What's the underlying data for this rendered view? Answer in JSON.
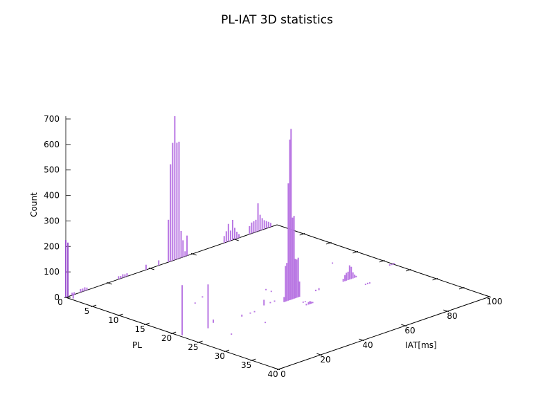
{
  "chart_data": {
    "type": "bar",
    "subtype": "3d-impulses",
    "title": "PL-IAT 3D statistics",
    "xlabel": "PL",
    "ylabel": "IAT[ms]",
    "zlabel": "Count",
    "x_range": [
      0,
      40
    ],
    "y_range": [
      0,
      100
    ],
    "z_range": [
      0,
      700
    ],
    "x_ticks": [
      0,
      5,
      10,
      15,
      20,
      25,
      30,
      35,
      40
    ],
    "y_ticks": [
      0,
      20,
      40,
      60,
      80,
      100
    ],
    "z_ticks": [
      0,
      100,
      200,
      300,
      400,
      500,
      600,
      700
    ],
    "grid": false,
    "legend": "none",
    "background": "#ffffff",
    "axis_color": "#000000",
    "bar_color": "#b977e3",
    "bar_color_dark": "#9c52cf",
    "points_format": [
      "PL",
      "IAT_ms",
      "Count"
    ],
    "points": [
      [
        0,
        0,
        225
      ],
      [
        0,
        1,
        212
      ],
      [
        1,
        1,
        18
      ],
      [
        0,
        3,
        10
      ],
      [
        0,
        4,
        9
      ],
      [
        0,
        7,
        13
      ],
      [
        0,
        8,
        12
      ],
      [
        0,
        9,
        14
      ],
      [
        0,
        10,
        10
      ],
      [
        0,
        25,
        12
      ],
      [
        0,
        26,
        10
      ],
      [
        0,
        27,
        14
      ],
      [
        0,
        28,
        11
      ],
      [
        0,
        29,
        12
      ],
      [
        0,
        38,
        20
      ],
      [
        0,
        44,
        20
      ],
      [
        0,
        48.6,
        166
      ],
      [
        0,
        49.6,
        381
      ],
      [
        0,
        50.6,
        462
      ],
      [
        0,
        51.6,
        564
      ],
      [
        0,
        52.6,
        457
      ],
      [
        0,
        53.6,
        458
      ],
      [
        0,
        54.6,
        105
      ],
      [
        0,
        55.5,
        66
      ],
      [
        0,
        56.5,
        20
      ],
      [
        0,
        57.4,
        79
      ],
      [
        0,
        75,
        27
      ],
      [
        0,
        76,
        43
      ],
      [
        0,
        77,
        69
      ],
      [
        0,
        78,
        40
      ],
      [
        0,
        79,
        79
      ],
      [
        0,
        80,
        45
      ],
      [
        0,
        81,
        27
      ],
      [
        0,
        82,
        15
      ],
      [
        0,
        87,
        32
      ],
      [
        0,
        88,
        43
      ],
      [
        0,
        89,
        45
      ],
      [
        0,
        90,
        48
      ],
      [
        0,
        91,
        110
      ],
      [
        0,
        92,
        62
      ],
      [
        0,
        93,
        46
      ],
      [
        0,
        94,
        35
      ],
      [
        0,
        95,
        29
      ],
      [
        0,
        96,
        23
      ],
      [
        0,
        97,
        16
      ],
      [
        22,
        48,
        20
      ],
      [
        22,
        48.7,
        140
      ],
      [
        22,
        49.3,
        150
      ],
      [
        22,
        50,
        460
      ],
      [
        22,
        50.7,
        630
      ],
      [
        22,
        51.3,
        670
      ],
      [
        22,
        52,
        320
      ],
      [
        22,
        52.7,
        325
      ],
      [
        22,
        53.3,
        155
      ],
      [
        22,
        54,
        150
      ],
      [
        22,
        54.7,
        155
      ],
      [
        22,
        55.3,
        60
      ],
      [
        22,
        76,
        12
      ],
      [
        22,
        76.8,
        24
      ],
      [
        22,
        77.5,
        31
      ],
      [
        22,
        78.3,
        33
      ],
      [
        22,
        79,
        56
      ],
      [
        22,
        79.8,
        48
      ],
      [
        22,
        80.6,
        24
      ],
      [
        22,
        81.4,
        13
      ],
      [
        22,
        82.1,
        6
      ],
      [
        25,
        51,
        6
      ],
      [
        25,
        52,
        10
      ],
      [
        25,
        52.7,
        12
      ],
      [
        25,
        53.3,
        8
      ],
      [
        25,
        54,
        5
      ],
      [
        25,
        79,
        5
      ],
      [
        25,
        80,
        6
      ],
      [
        25,
        81,
        5
      ],
      [
        22,
        63,
        6
      ],
      [
        22,
        64.5,
        8
      ],
      [
        22,
        98,
        6
      ],
      [
        22,
        99,
        5
      ],
      [
        22,
        100,
        6
      ],
      [
        21.5,
        1,
        197
      ],
      [
        22,
        12,
        172
      ],
      [
        16,
        86,
        5
      ],
      [
        14,
        26,
        5
      ],
      [
        13,
        32,
        5
      ],
      [
        21,
        17,
        13
      ],
      [
        26,
        13,
        5
      ],
      [
        22,
        28,
        8
      ],
      [
        22,
        32,
        5
      ],
      [
        22,
        34,
        5
      ],
      [
        26,
        29,
        5
      ],
      [
        21,
        41,
        22
      ],
      [
        17,
        52,
        5
      ],
      [
        18,
        52,
        5
      ],
      [
        21,
        44,
        5
      ],
      [
        21,
        46,
        5
      ],
      [
        24,
        52,
        5
      ],
      [
        24,
        53,
        4
      ]
    ]
  }
}
